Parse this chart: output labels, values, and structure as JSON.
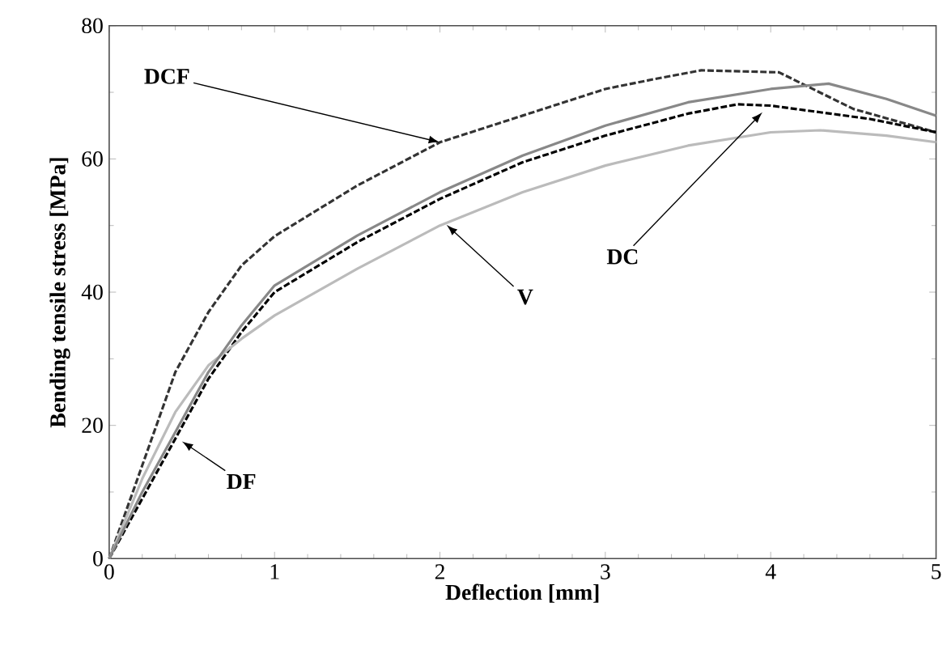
{
  "chart_data": {
    "type": "line",
    "xlabel": "Deflection [mm]",
    "ylabel": "Bending tensile stress [MPa]",
    "xlim": [
      0,
      5
    ],
    "ylim": [
      0,
      80
    ],
    "xticks": [
      0,
      1,
      2,
      3,
      4,
      5
    ],
    "yticks": [
      0,
      20,
      40,
      60,
      80
    ],
    "marker": "none",
    "series": [
      {
        "color": "#333333",
        "line_style": "dashed",
        "x": [
          0,
          0.2,
          0.4,
          0.6,
          0.8,
          1,
          1.5,
          2,
          2.5,
          3,
          3.3,
          3.58,
          4.05,
          4.5,
          5
        ],
        "values": [
          0,
          14,
          28,
          37,
          44,
          48.4,
          56,
          62.5,
          66.5,
          70.5,
          72,
          73.3,
          73,
          67.5,
          64
        ]
      },
      {
        "color": "#000000",
        "line_style": "dashed",
        "x": [
          0,
          0.2,
          0.4,
          0.6,
          0.8,
          1,
          1.5,
          2,
          2.5,
          3,
          3.5,
          3.8,
          4,
          4.3,
          4.6,
          5
        ],
        "values": [
          0,
          9,
          18,
          27,
          34,
          40,
          47.5,
          54,
          59.5,
          63.5,
          66.8,
          68.2,
          68,
          67,
          66,
          64
        ]
      },
      {
        "color": "#bbbbbb",
        "line_style": "solid",
        "x": [
          0,
          0.2,
          0.4,
          0.6,
          0.8,
          1,
          1.5,
          2,
          2.5,
          3,
          3.5,
          4,
          4.3,
          4.7,
          5
        ],
        "values": [
          0,
          12,
          22,
          29,
          33,
          36.5,
          43.5,
          50,
          55,
          59,
          62,
          64,
          64.3,
          63.5,
          62.5
        ]
      },
      {
        "color": "#888888",
        "line_style": "solid",
        "x": [
          0,
          0.2,
          0.4,
          0.6,
          0.8,
          1,
          1.5,
          2,
          2.5,
          3,
          3.5,
          4,
          4.35,
          4.7,
          5
        ],
        "values": [
          0,
          10,
          19,
          28,
          35,
          41,
          48.5,
          55,
          60.5,
          65,
          68.5,
          70.5,
          71.3,
          69,
          66.5
        ]
      }
    ],
    "annotations": [
      {
        "text": "DCF",
        "x": 2,
        "y": 62.5
      },
      {
        "text": "DC",
        "x": 3.95,
        "y": 67
      },
      {
        "text": "V",
        "x": 2.04,
        "y": 50.1
      },
      {
        "text": "DF",
        "x": 0.44,
        "y": 17.6
      }
    ]
  }
}
